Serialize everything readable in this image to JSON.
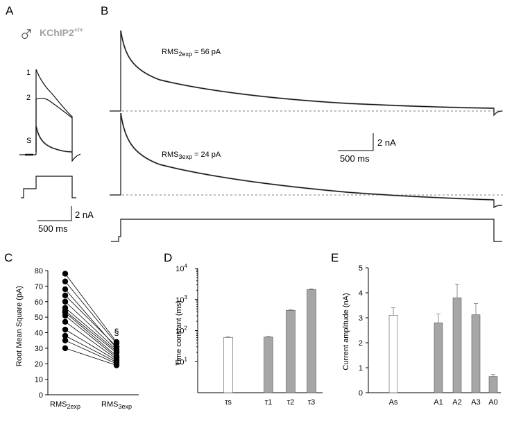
{
  "panel_labels": [
    "A",
    "B",
    "C",
    "D",
    "E"
  ],
  "panel_a": {
    "sex_symbol": "♂",
    "genotype": "KChIP2",
    "genotype_sup": "+/+",
    "trace_labels": [
      "1",
      "2",
      "S"
    ],
    "scale_current": "2 nA",
    "scale_time": "500 ms"
  },
  "panel_b": {
    "rms_top_main": "RMS",
    "rms_top_sub": "2exp",
    "rms_top_value": " = 56 pA",
    "rms_bottom_main": "RMS",
    "rms_bottom_sub": "3exp",
    "rms_bottom_value": " = 24 pA",
    "scale_current": "2 nA",
    "scale_time": "500 ms"
  },
  "colors": {
    "bar_filled": "#a6a6a6",
    "bar_open": "#ffffff",
    "fit_trace": "#9a9a9a"
  },
  "chart_data": [
    {
      "panel": "C",
      "type": "scatter",
      "ylabel": "Root Mean Square (pA)",
      "ylim": [
        0,
        80
      ],
      "yticks": [
        0,
        10,
        20,
        30,
        40,
        50,
        60,
        70,
        80
      ],
      "categories": [
        {
          "main": "RMS",
          "sub": "2exp"
        },
        {
          "main": "RMS",
          "sub": "3exp"
        }
      ],
      "pairs": [
        [
          78,
          34
        ],
        [
          73,
          33
        ],
        [
          68,
          30
        ],
        [
          64,
          31
        ],
        [
          60,
          29
        ],
        [
          56,
          28
        ],
        [
          54,
          27
        ],
        [
          53,
          25
        ],
        [
          51,
          24
        ],
        [
          47,
          23
        ],
        [
          42,
          22
        ],
        [
          38,
          21
        ],
        [
          35,
          20
        ],
        [
          30,
          19
        ]
      ],
      "significance_marker": "§"
    },
    {
      "panel": "D",
      "type": "bar",
      "ylabel": "Time constant (ms)",
      "scale": "log",
      "ylim": [
        1,
        10000
      ],
      "yticks": [
        {
          "base": "10",
          "exp": "1"
        },
        {
          "base": "10",
          "exp": "2"
        },
        {
          "base": "10",
          "exp": "3"
        },
        {
          "base": "10",
          "exp": "4"
        }
      ],
      "bars": [
        {
          "label": "τs",
          "value": 60,
          "error": 3,
          "filled": false
        },
        {
          "label": "τ1",
          "value": 62,
          "error": 3,
          "filled": true
        },
        {
          "label": "τ2",
          "value": 450,
          "error": 20,
          "filled": true
        },
        {
          "label": "τ3",
          "value": 2100,
          "error": 120,
          "filled": true
        }
      ]
    },
    {
      "panel": "E",
      "type": "bar",
      "ylabel": "Current amplitude (nA)",
      "ylim": [
        0,
        5
      ],
      "yticks": [
        0,
        1,
        2,
        3,
        4,
        5
      ],
      "bars": [
        {
          "label": "As",
          "value": 3.1,
          "error": 0.3,
          "filled": false
        },
        {
          "label": "A1",
          "value": 2.8,
          "error": 0.35,
          "filled": true
        },
        {
          "label": "A2",
          "value": 3.8,
          "error": 0.55,
          "filled": true
        },
        {
          "label": "A3",
          "value": 3.12,
          "error": 0.45,
          "filled": true
        },
        {
          "label": "A0",
          "value": 0.65,
          "error": 0.08,
          "filled": true
        }
      ]
    }
  ]
}
